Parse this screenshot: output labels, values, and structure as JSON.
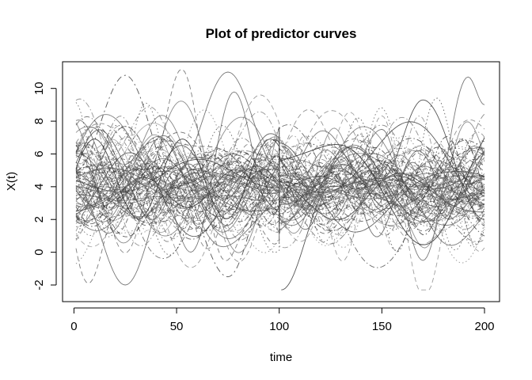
{
  "chart_data": {
    "type": "line",
    "title": "Plot of predictor curves",
    "xlabel": "time",
    "ylabel": "X(t)",
    "xlim": [
      1,
      200
    ],
    "ylim": [
      -2.3,
      11.2
    ],
    "xticks": [
      0,
      50,
      100,
      150,
      200
    ],
    "yticks": [
      -2,
      0,
      2,
      4,
      6,
      8,
      10
    ],
    "grid": false,
    "legend": "none",
    "n_curves": 100,
    "discontinuity_at": 100,
    "series_color": "#000000",
    "line_styles": [
      "solid",
      "dashed",
      "dotted",
      "dotdash"
    ],
    "representative_curves": [
      {
        "segment": 1,
        "x": [
          1,
          25,
          50,
          75,
          100
        ],
        "values": [
          4.0,
          -2.0,
          5.0,
          11.0,
          5.0
        ]
      },
      {
        "segment": 1,
        "x": [
          1,
          25,
          50,
          75,
          100
        ],
        "values": [
          5.0,
          10.8,
          4.0,
          -1.5,
          6.0
        ]
      },
      {
        "segment": 2,
        "x": [
          101,
          125,
          150,
          170,
          192,
          200
        ],
        "values": [
          6.5,
          2.0,
          7.5,
          -0.5,
          10.7,
          9.0
        ]
      },
      {
        "segment": 2,
        "x": [
          101,
          125,
          150,
          170,
          200
        ],
        "values": [
          -2.3,
          4.0,
          4.5,
          9.3,
          2.0
        ]
      }
    ]
  }
}
